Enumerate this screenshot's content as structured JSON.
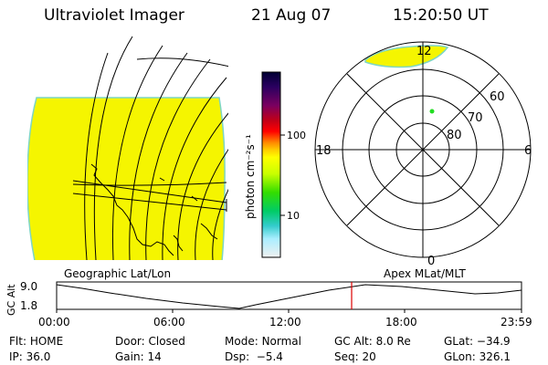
{
  "header": {
    "instrument": "Ultraviolet Imager",
    "date": "21 Aug 07",
    "time": "15:20:50 UT"
  },
  "colors": {
    "image_fill": "#f5f500",
    "image_edge": "#7ed6c4",
    "coastline": "#000000",
    "dot": "#22dd22",
    "time_marker": "#dd0000"
  },
  "colorbar": {
    "unit": "photon cm⁻²s⁻¹",
    "tick_labels": [
      "100",
      "10"
    ],
    "scale": "log",
    "gradient": [
      "#000033",
      "#2a0060",
      "#7a0060",
      "#c00018",
      "#ff0000",
      "#ff8800",
      "#ffcc00",
      "#ffff00",
      "#c8ff00",
      "#33dd00",
      "#00cc66",
      "#33cccc",
      "#aaeeff",
      "#f0f0f0"
    ]
  },
  "polar_plot": {
    "mlt_labels": {
      "top": "12",
      "left": "18",
      "right": "6",
      "bottom": "0"
    },
    "lat_labels": [
      "60",
      "70",
      "80"
    ]
  },
  "altitude_panel": {
    "ylabel": "GC Alt",
    "left_caption": "Geographic Lat/Lon",
    "right_caption": "Apex MLat/MLT",
    "y_ticks": [
      "9.0",
      "1.8"
    ],
    "x_ticks": [
      "00:00",
      "06:00",
      "12:00",
      "18:00",
      "23:59"
    ]
  },
  "status": {
    "row1": [
      {
        "key": "Flt:",
        "value": "HOME"
      },
      {
        "key": "Door:",
        "value": "Closed"
      },
      {
        "key": "Mode:",
        "value": "Normal"
      },
      {
        "key": "GC Alt:",
        "value": "8.0 Re"
      },
      {
        "key": "GLat:",
        "value": "−34.9"
      }
    ],
    "row2": [
      {
        "key": "IP:",
        "value": "36.0"
      },
      {
        "key": "Gain:",
        "value": "14"
      },
      {
        "key": "Dsp:",
        "value": "−5.4"
      },
      {
        "key": "Seq:",
        "value": "20"
      },
      {
        "key": "GLon:",
        "value": "326.1"
      }
    ]
  }
}
